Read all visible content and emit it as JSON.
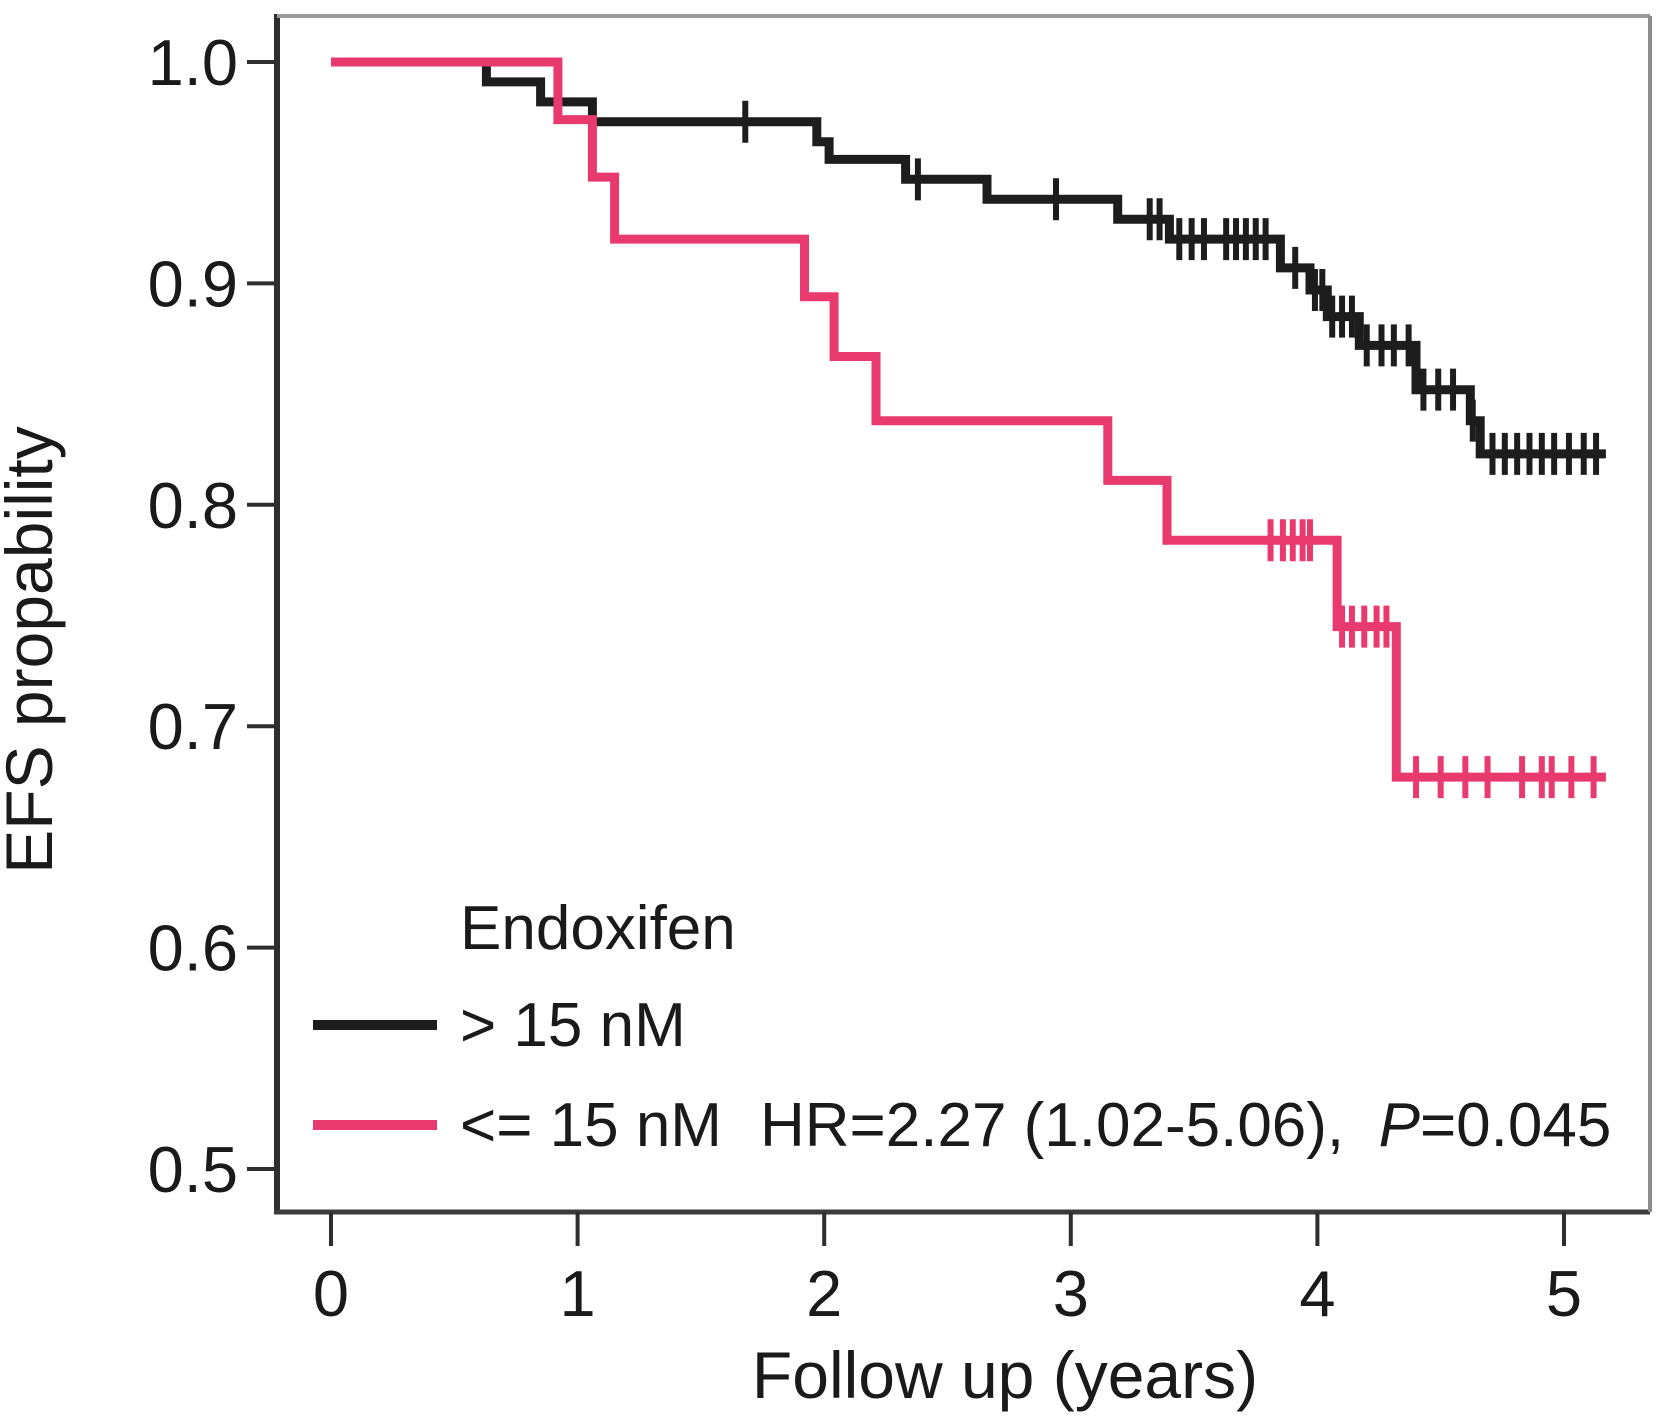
{
  "figure": {
    "background": "#ffffff",
    "axis_color": "#2e2e2e",
    "frame_top_color": "#9a9a9a",
    "frame_right_color": "#8c8c8c",
    "frame_bottom_color": "#3b3b3b"
  },
  "legend": {
    "title": "Endoxifen",
    "entries": [
      {
        "label": "> 15 nM",
        "color": "#1d1d1d"
      },
      {
        "label": "<= 15 nM",
        "color": "#e83a6e"
      }
    ],
    "annotation": {
      "prefix": "HR=2.27 (1.02-5.06),  ",
      "italic": "P",
      "suffix": "=0.045"
    }
  },
  "chart_data": {
    "type": "line",
    "subtype": "kaplan-meier-step",
    "title": "",
    "xlabel": "Follow up (years)",
    "ylabel": "EFS propability",
    "xlim": [
      0,
      5.35
    ],
    "ylim": [
      0.48,
      1.02
    ],
    "grid": false,
    "legend_position": "inside-bottom-left",
    "x_ticks": [
      {
        "value": 0,
        "label": "0"
      },
      {
        "value": 1,
        "label": "1"
      },
      {
        "value": 2,
        "label": "2"
      },
      {
        "value": 3,
        "label": "3"
      },
      {
        "value": 4,
        "label": "4"
      },
      {
        "value": 5,
        "label": "5"
      }
    ],
    "y_ticks": [
      {
        "value": 1.0,
        "label": "1.0"
      },
      {
        "value": 0.9,
        "label": "0.9"
      },
      {
        "value": 0.8,
        "label": "0.8"
      },
      {
        "value": 0.7,
        "label": "0.7"
      },
      {
        "value": 0.6,
        "label": "0.6"
      },
      {
        "value": 0.5,
        "label": "0.5"
      }
    ],
    "series": [
      {
        "name": "> 15 nM",
        "color": "#1d1d1d",
        "start": [
          0,
          1.0
        ],
        "end_t": 5.17,
        "steps": [
          [
            0.63,
            0.991
          ],
          [
            0.85,
            0.982
          ],
          [
            1.06,
            0.973
          ],
          [
            1.97,
            0.964
          ],
          [
            2.02,
            0.956
          ],
          [
            2.33,
            0.947
          ],
          [
            2.66,
            0.938
          ],
          [
            3.19,
            0.929
          ],
          [
            3.4,
            0.92
          ],
          [
            3.85,
            0.907
          ],
          [
            3.97,
            0.897
          ],
          [
            4.04,
            0.885
          ],
          [
            4.17,
            0.872
          ],
          [
            4.4,
            0.852
          ],
          [
            4.62,
            0.838
          ],
          [
            4.66,
            0.823
          ]
        ],
        "censors": [
          [
            1.68,
            0.973
          ],
          [
            2.38,
            0.947
          ],
          [
            2.94,
            0.938
          ],
          [
            3.32,
            0.929
          ],
          [
            3.36,
            0.929
          ],
          [
            3.44,
            0.92
          ],
          [
            3.49,
            0.92
          ],
          [
            3.54,
            0.92
          ],
          [
            3.63,
            0.92
          ],
          [
            3.67,
            0.92
          ],
          [
            3.71,
            0.92
          ],
          [
            3.75,
            0.92
          ],
          [
            3.79,
            0.92
          ],
          [
            3.91,
            0.907
          ],
          [
            3.99,
            0.897
          ],
          [
            4.02,
            0.897
          ],
          [
            4.06,
            0.885
          ],
          [
            4.1,
            0.885
          ],
          [
            4.14,
            0.885
          ],
          [
            4.2,
            0.872
          ],
          [
            4.26,
            0.872
          ],
          [
            4.31,
            0.872
          ],
          [
            4.37,
            0.872
          ],
          [
            4.43,
            0.852
          ],
          [
            4.49,
            0.852
          ],
          [
            4.55,
            0.852
          ],
          [
            4.63,
            0.838
          ],
          [
            4.71,
            0.823
          ],
          [
            4.76,
            0.823
          ],
          [
            4.81,
            0.823
          ],
          [
            4.86,
            0.823
          ],
          [
            4.91,
            0.823
          ],
          [
            4.96,
            0.823
          ],
          [
            5.02,
            0.823
          ],
          [
            5.08,
            0.823
          ],
          [
            5.13,
            0.823
          ]
        ]
      },
      {
        "name": "<= 15 nM",
        "color": "#e83a6e",
        "start": [
          0,
          1.0
        ],
        "end_t": 5.17,
        "steps": [
          [
            0.92,
            0.974
          ],
          [
            1.06,
            0.948
          ],
          [
            1.15,
            0.92
          ],
          [
            1.92,
            0.894
          ],
          [
            2.04,
            0.867
          ],
          [
            2.21,
            0.838
          ],
          [
            3.15,
            0.811
          ],
          [
            3.39,
            0.784
          ],
          [
            4.08,
            0.745
          ],
          [
            4.32,
            0.677
          ]
        ],
        "censors": [
          [
            3.81,
            0.784
          ],
          [
            3.86,
            0.784
          ],
          [
            3.9,
            0.784
          ],
          [
            3.94,
            0.784
          ],
          [
            3.97,
            0.784
          ],
          [
            4.1,
            0.745
          ],
          [
            4.14,
            0.745
          ],
          [
            4.19,
            0.745
          ],
          [
            4.24,
            0.745
          ],
          [
            4.28,
            0.745
          ],
          [
            4.4,
            0.677
          ],
          [
            4.5,
            0.677
          ],
          [
            4.6,
            0.677
          ],
          [
            4.69,
            0.677
          ],
          [
            4.83,
            0.677
          ],
          [
            4.91,
            0.677
          ],
          [
            4.95,
            0.677
          ],
          [
            5.03,
            0.677
          ],
          [
            5.12,
            0.677
          ]
        ]
      }
    ]
  }
}
